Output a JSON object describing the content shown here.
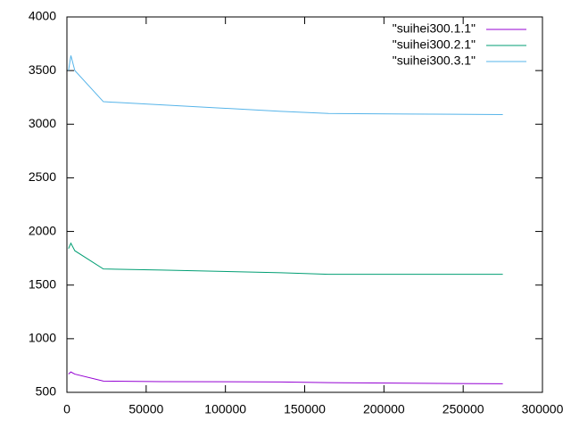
{
  "chart_data": {
    "type": "line",
    "x": [
      1000,
      2500,
      5000,
      23000,
      60000,
      135000,
      165000,
      215000,
      275000
    ],
    "series": [
      {
        "name": "\"suihei300.1.1\"",
        "color": "#9400d3",
        "values": [
          670,
          690,
          670,
          605,
          600,
          597,
          590,
          585,
          580
        ]
      },
      {
        "name": "\"suihei300.2.1\"",
        "color": "#009e73",
        "values": [
          1840,
          1890,
          1820,
          1650,
          1640,
          1615,
          1600,
          1600,
          1600
        ]
      },
      {
        "name": "\"suihei300.3.1\"",
        "color": "#56b4e9",
        "values": [
          3500,
          3640,
          3500,
          3210,
          3180,
          3120,
          3100,
          3095,
          3090
        ]
      }
    ],
    "xlim": [
      0,
      300000
    ],
    "xticks": [
      0,
      50000,
      100000,
      150000,
      200000,
      250000,
      300000
    ],
    "ylim": [
      500,
      4000
    ],
    "yticks": [
      500,
      1000,
      1500,
      2000,
      2500,
      3000,
      3500,
      4000
    ],
    "grid": false,
    "legend": "top-right"
  }
}
